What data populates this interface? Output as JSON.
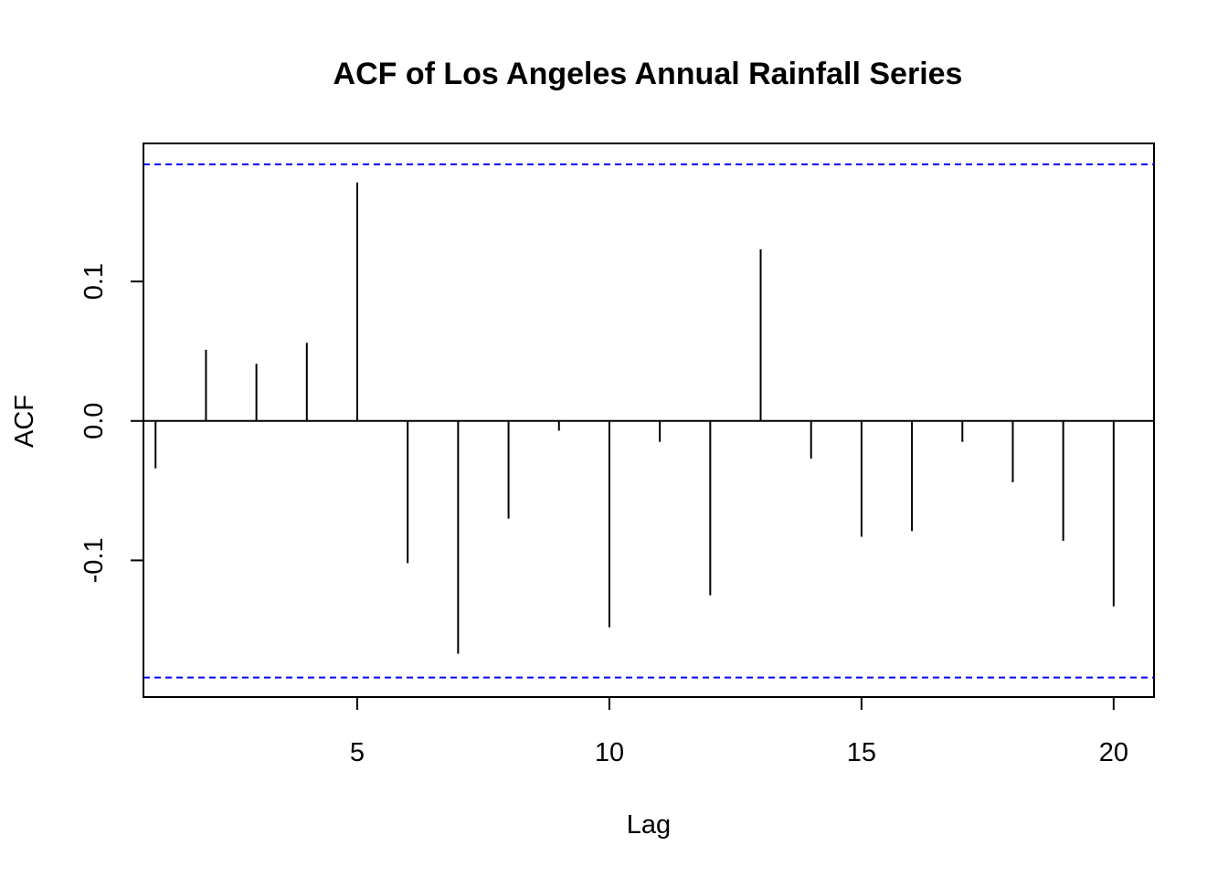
{
  "chart_data": {
    "type": "bar",
    "title": "ACF of Los Angeles Annual Rainfall Series",
    "xlabel": "Lag",
    "ylabel": "ACF",
    "x": [
      1,
      2,
      3,
      4,
      5,
      6,
      7,
      8,
      9,
      10,
      11,
      12,
      13,
      14,
      15,
      16,
      17,
      18,
      19,
      20
    ],
    "values": [
      -0.034,
      0.051,
      0.041,
      0.056,
      0.171,
      -0.102,
      -0.167,
      -0.07,
      -0.007,
      -0.148,
      -0.015,
      -0.125,
      0.123,
      -0.027,
      -0.083,
      -0.079,
      -0.015,
      -0.044,
      -0.086,
      -0.133
    ],
    "confidence_bound": 0.184,
    "xlim": [
      0.76,
      20.8
    ],
    "ylim": [
      -0.198,
      0.199
    ],
    "x_ticks": [
      5,
      10,
      15,
      20
    ],
    "x_tick_labels": [
      "5",
      "10",
      "15",
      "20"
    ],
    "y_ticks": [
      -0.1,
      0.0,
      0.1
    ],
    "y_tick_labels": [
      "-0.1",
      "0.0",
      "0.1"
    ],
    "grid": false,
    "colors": {
      "bars": "#000000",
      "bounds": "#0000ff",
      "zero_line": "#000000"
    }
  }
}
